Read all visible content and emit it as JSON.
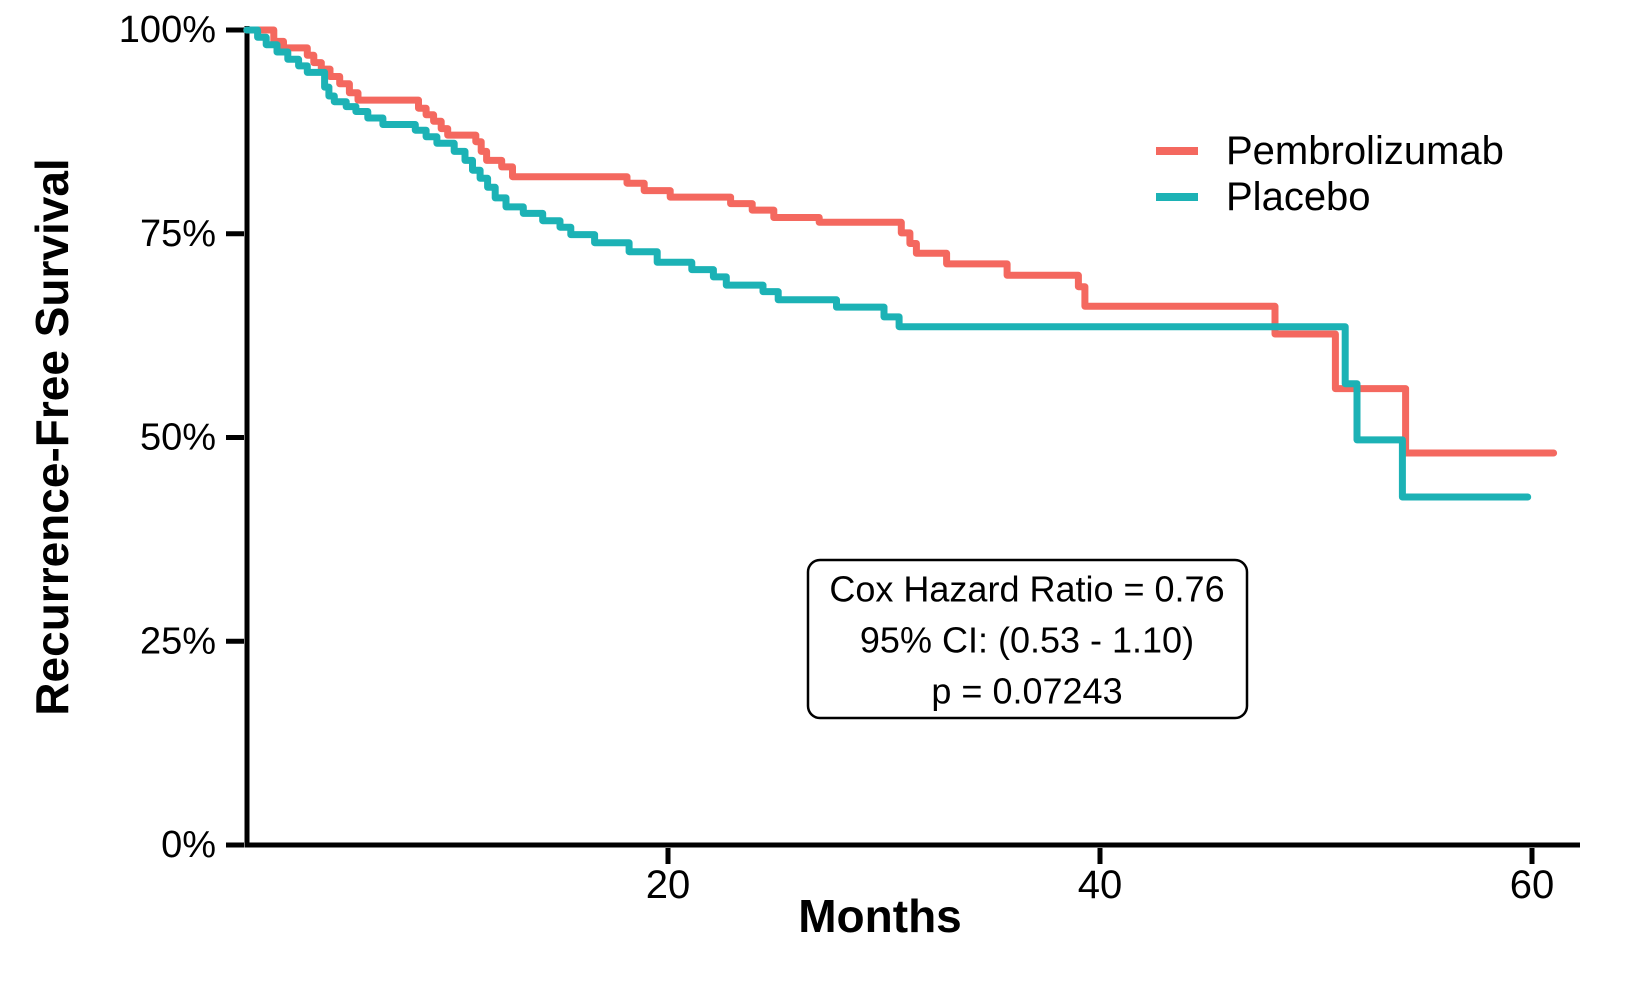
{
  "chart_data": {
    "type": "line",
    "subtype": "kaplan-meier-step",
    "title": "",
    "xlabel": "Months",
    "ylabel": "Recurrence-Free Survival",
    "xlim": [
      0.5,
      62.5
    ],
    "ylim": [
      0,
      100
    ],
    "grid": false,
    "legend_position": "top-right-inside",
    "x_ticks": [
      {
        "value": 20,
        "label": "20"
      },
      {
        "value": 40,
        "label": "40"
      },
      {
        "value": 60,
        "label": "60"
      }
    ],
    "y_ticks": [
      {
        "value": 0,
        "label": "0%"
      },
      {
        "value": 25,
        "label": "25%"
      },
      {
        "value": 50,
        "label": "50%"
      },
      {
        "value": 75,
        "label": "75%"
      },
      {
        "value": 100,
        "label": "100%"
      }
    ],
    "series": [
      {
        "name": "Pembrolizumab",
        "color": "#F4685F",
        "points": [
          [
            0.5,
            100
          ],
          [
            1.75,
            98.6
          ],
          [
            2.2,
            97.8
          ],
          [
            3.3,
            96.9
          ],
          [
            3.6,
            96.0
          ],
          [
            3.95,
            95.2
          ],
          [
            4.35,
            94.3
          ],
          [
            4.8,
            93.4
          ],
          [
            5.25,
            92.3
          ],
          [
            5.65,
            91.4
          ],
          [
            8.45,
            90.4
          ],
          [
            8.8,
            89.6
          ],
          [
            9.15,
            88.8
          ],
          [
            9.5,
            87.9
          ],
          [
            9.8,
            87.1
          ],
          [
            11.1,
            86.3
          ],
          [
            11.35,
            85.1
          ],
          [
            11.6,
            84.0
          ],
          [
            12.3,
            83.2
          ],
          [
            12.8,
            82.0
          ],
          [
            18.1,
            81.2
          ],
          [
            18.9,
            80.3
          ],
          [
            20.1,
            79.5
          ],
          [
            22.9,
            78.7
          ],
          [
            23.9,
            77.9
          ],
          [
            24.9,
            77.0
          ],
          [
            27.0,
            76.4
          ],
          [
            30.8,
            75.1
          ],
          [
            31.2,
            73.8
          ],
          [
            31.5,
            72.6
          ],
          [
            32.9,
            71.3
          ],
          [
            35.7,
            69.9
          ],
          [
            39.0,
            68.5
          ],
          [
            39.3,
            66.1
          ],
          [
            48.1,
            62.7
          ],
          [
            50.9,
            56.0
          ],
          [
            54.15,
            48.1
          ],
          [
            61.0,
            48.1
          ]
        ]
      },
      {
        "name": "Placebo",
        "color": "#1CB2B5",
        "points": [
          [
            0.5,
            100
          ],
          [
            1.0,
            99.1
          ],
          [
            1.4,
            98.2
          ],
          [
            1.9,
            97.3
          ],
          [
            2.4,
            96.4
          ],
          [
            2.9,
            95.6
          ],
          [
            3.3,
            94.8
          ],
          [
            4.1,
            93.0
          ],
          [
            4.3,
            91.9
          ],
          [
            4.55,
            91.2
          ],
          [
            5.1,
            90.6
          ],
          [
            5.55,
            90.0
          ],
          [
            6.1,
            89.2
          ],
          [
            6.8,
            88.4
          ],
          [
            8.3,
            87.7
          ],
          [
            8.8,
            86.9
          ],
          [
            9.3,
            86.1
          ],
          [
            10.1,
            85.1
          ],
          [
            10.6,
            84.0
          ],
          [
            10.95,
            82.8
          ],
          [
            11.3,
            81.8
          ],
          [
            11.65,
            80.7
          ],
          [
            12.0,
            79.4
          ],
          [
            12.5,
            78.3
          ],
          [
            13.3,
            77.5
          ],
          [
            14.2,
            76.6
          ],
          [
            15.0,
            75.8
          ],
          [
            15.5,
            74.9
          ],
          [
            16.6,
            73.9
          ],
          [
            18.2,
            72.8
          ],
          [
            19.5,
            71.5
          ],
          [
            21.1,
            70.6
          ],
          [
            22.1,
            69.7
          ],
          [
            22.7,
            68.7
          ],
          [
            24.4,
            67.9
          ],
          [
            25.1,
            66.9
          ],
          [
            27.8,
            66.0
          ],
          [
            30.0,
            64.8
          ],
          [
            30.7,
            63.6
          ],
          [
            51.35,
            56.6
          ],
          [
            51.9,
            49.7
          ],
          [
            54.0,
            42.7
          ],
          [
            59.8,
            42.7
          ]
        ]
      }
    ],
    "annotation": {
      "lines": [
        "Cox Hazard Ratio = 0.76",
        "95% CI: (0.53 - 1.10)",
        "p = 0.07243"
      ]
    }
  }
}
